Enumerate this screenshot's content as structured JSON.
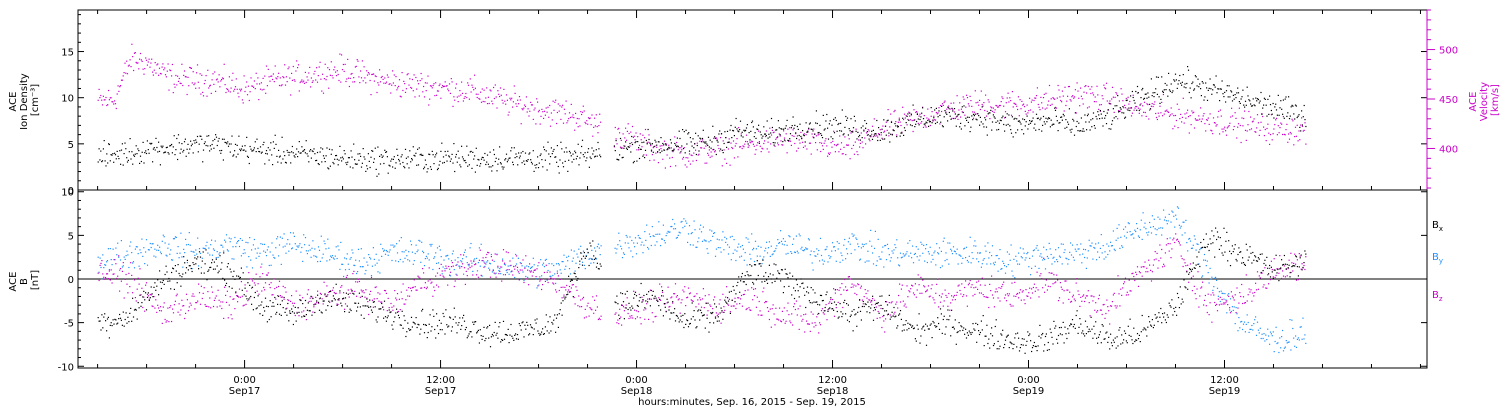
{
  "chart_data": [
    {
      "type": "scatter",
      "panel": "top",
      "ylabel": [
        "ACE",
        "Ion Density",
        "[cm⁻³]"
      ],
      "ylim": [
        0,
        19.5
      ],
      "yticks": [
        0,
        5,
        10,
        15
      ],
      "y2label": [
        "ACE",
        "Velocity",
        "[km/s]"
      ],
      "y2lim": [
        358,
        540
      ],
      "y2ticks": [
        400,
        450,
        500
      ],
      "colors": {
        "density": "#000000",
        "velocity": "#cc00cc"
      },
      "series": [
        {
          "axis": "left",
          "x": [
            -9,
            -6,
            -4,
            -2,
            0,
            3,
            6,
            9,
            12,
            15,
            17,
            20,
            23,
            25,
            27,
            29,
            30,
            32,
            34,
            36,
            39,
            42,
            45,
            47,
            49,
            51,
            53,
            55,
            57,
            59,
            61,
            63,
            65
          ],
          "values": [
            3.5,
            4.5,
            4.8,
            5.0,
            4.5,
            4.0,
            3.5,
            3.3,
            3.5,
            3.5,
            3.5,
            3.5,
            4.5,
            5.0,
            5.0,
            5.5,
            6.5,
            6.0,
            7.0,
            7.0,
            6.5,
            8.0,
            8.0,
            7.0,
            7.5,
            7.0,
            8.0,
            10.0,
            12.0,
            11.0,
            10.0,
            9.0,
            8.0
          ]
        },
        {
          "axis": "right",
          "x": [
            -9,
            -8,
            -7,
            -6,
            -5,
            -4,
            -3,
            -2,
            0,
            2,
            4,
            6,
            8,
            10,
            12,
            14,
            16,
            18,
            20,
            23,
            25,
            27,
            29,
            31,
            33,
            35,
            37,
            39,
            41,
            43,
            45,
            47,
            49,
            51,
            53,
            55,
            57,
            59,
            61,
            63,
            65
          ],
          "values": [
            448,
            450,
            490,
            488,
            475,
            470,
            470,
            470,
            460,
            470,
            475,
            480,
            470,
            465,
            462,
            458,
            448,
            440,
            435,
            415,
            400,
            395,
            400,
            405,
            410,
            405,
            400,
            420,
            430,
            440,
            445,
            445,
            448,
            455,
            450,
            440,
            435,
            430,
            425,
            420,
            420
          ]
        }
      ]
    },
    {
      "type": "scatter",
      "panel": "bottom",
      "ylabel": [
        "ACE",
        "B",
        "[nT]"
      ],
      "ylim": [
        -10.2,
        10.2
      ],
      "yticks": [
        -10,
        -5,
        0,
        5,
        10
      ],
      "colors": {
        "bx": "#000000",
        "by": "#1e90ff",
        "bz": "#cc00cc"
      },
      "series": [
        {
          "name": "Bx",
          "x": [
            -9,
            -7,
            -5,
            -3,
            -1,
            1,
            3,
            5,
            7,
            9,
            11,
            13,
            15,
            17,
            19,
            21,
            23,
            25,
            27,
            29,
            31,
            33,
            35,
            37,
            39,
            41,
            43,
            45,
            47,
            49,
            51,
            53,
            55,
            57,
            59,
            61,
            63,
            65
          ],
          "values": [
            -5,
            -4,
            0,
            2,
            1,
            -3,
            -4,
            -2,
            -3,
            -4,
            -5,
            -5,
            -6,
            -6,
            -5,
            4,
            -3,
            -2,
            -5,
            -4,
            1,
            0,
            -2,
            -4,
            -3,
            -6,
            -5,
            -6,
            -7,
            -7,
            -5,
            -7,
            -6,
            -3,
            5,
            3,
            1,
            2
          ]
        },
        {
          "name": "By",
          "x": [
            -9,
            -7,
            -5,
            -3,
            -1,
            1,
            3,
            5,
            7,
            9,
            11,
            13,
            15,
            17,
            19,
            21,
            23,
            25,
            27,
            29,
            31,
            33,
            35,
            37,
            39,
            41,
            43,
            45,
            47,
            49,
            51,
            53,
            55,
            57,
            59,
            61,
            63,
            65
          ],
          "values": [
            2,
            3,
            4,
            3,
            4,
            3,
            4,
            3,
            2,
            3,
            3,
            2,
            2,
            1,
            1,
            3,
            4,
            5,
            6,
            4,
            3,
            4,
            3,
            4,
            3,
            3,
            3,
            3,
            2,
            3,
            3,
            4,
            6,
            7,
            1,
            -5,
            -7,
            -6
          ]
        },
        {
          "name": "Bz",
          "x": [
            -9,
            -7,
            -5,
            -3,
            -1,
            1,
            3,
            5,
            7,
            9,
            11,
            13,
            15,
            17,
            19,
            21,
            23,
            25,
            27,
            29,
            31,
            33,
            35,
            37,
            39,
            41,
            43,
            45,
            47,
            49,
            51,
            53,
            55,
            57,
            59,
            61,
            63,
            65
          ],
          "values": [
            1,
            0,
            -4,
            -2,
            -3,
            0,
            -3,
            -2,
            -1,
            -3,
            0,
            1,
            2,
            1,
            0,
            -3,
            -4,
            -3,
            -2,
            -3,
            -2,
            -4,
            -5,
            0,
            -4,
            -1,
            -2,
            -1,
            -2,
            0,
            -2,
            -3,
            1,
            4,
            -3,
            -2,
            1,
            2
          ]
        }
      ],
      "legend": [
        {
          "key": "bx",
          "label": "B",
          "sub": "x"
        },
        {
          "key": "by",
          "label": "B",
          "sub": "y"
        },
        {
          "key": "bz",
          "label": "B",
          "sub": "z"
        }
      ],
      "legend_position": "right"
    }
  ],
  "xlim": [
    -10.2,
    72.4
  ],
  "xticks": [
    {
      "x": 0,
      "time": "0:00",
      "date": "Sep17"
    },
    {
      "x": 12,
      "time": "12:00",
      "date": "Sep17"
    },
    {
      "x": 24,
      "time": "0:00",
      "date": "Sep18"
    },
    {
      "x": 36,
      "time": "12:00",
      "date": "Sep18"
    },
    {
      "x": 48,
      "time": "0:00",
      "date": "Sep19"
    },
    {
      "x": 60,
      "time": "12:00",
      "date": "Sep19"
    }
  ],
  "xlabel": "hours:minutes, Sep. 16, 2015 - Sep. 19, 2015"
}
